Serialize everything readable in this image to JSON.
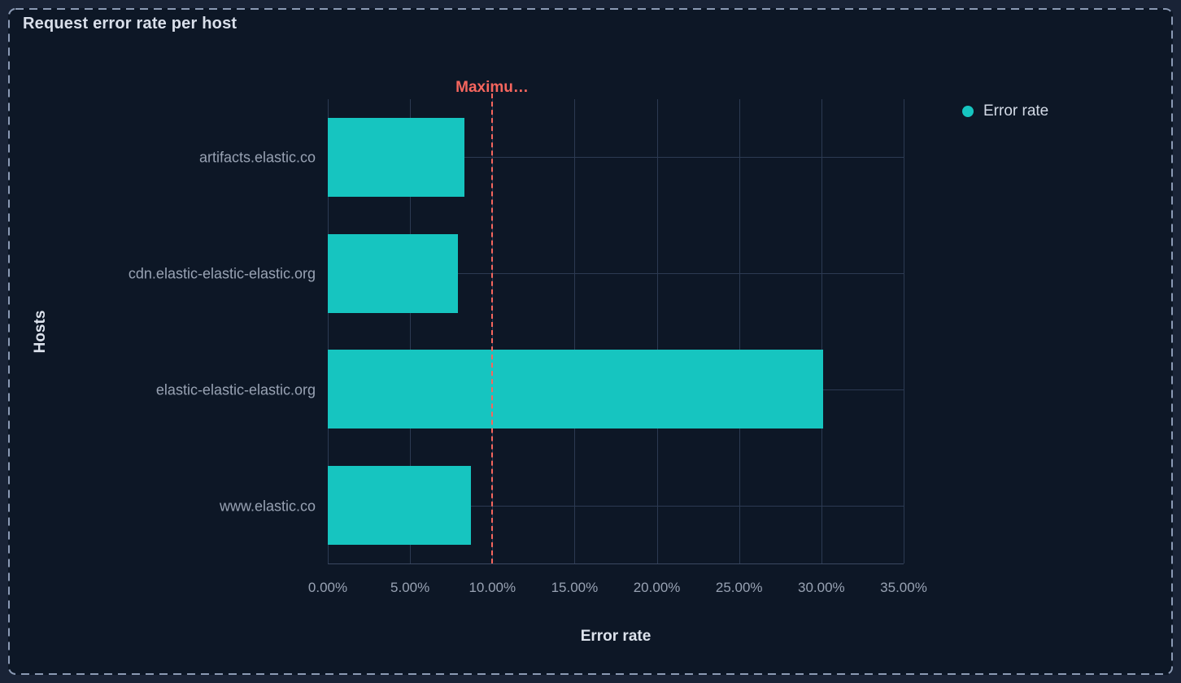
{
  "panel": {
    "title": "Request error rate per host"
  },
  "legend": {
    "position": "top-right",
    "items": [
      {
        "label": "Error rate",
        "color": "#16C5C0"
      }
    ]
  },
  "chart_data": {
    "type": "bar",
    "orientation": "horizontal",
    "title": "Request error rate per host",
    "xlabel": "Error rate",
    "ylabel": "Hosts",
    "categories": [
      "artifacts.elastic.co",
      "cdn.elastic-elastic-elastic.org",
      "elastic-elastic-elastic.org",
      "www.elastic.co"
    ],
    "series": [
      {
        "name": "Error rate",
        "values": [
          8.3,
          7.9,
          30.1,
          8.7
        ],
        "unit": "%",
        "color": "#16C5C0"
      }
    ],
    "xlim": [
      0,
      35
    ],
    "x_tick_labels": [
      "0.00%",
      "5.00%",
      "10.00%",
      "15.00%",
      "20.00%",
      "25.00%",
      "30.00%",
      "35.00%"
    ],
    "grid": true,
    "legend_position": "top-right",
    "annotation": {
      "label": "Maximu…",
      "value": 10,
      "unit": "%",
      "line_style": "dashed",
      "color": "#F6665E"
    }
  },
  "colors": {
    "bar": "#16C5C0",
    "annotation": "#F6665E",
    "panel_background": "#0D1726",
    "page_background": "#192336",
    "selection_border": "#8B9AB4",
    "gridline": "#2C3A52",
    "axis_line": "#3A4760",
    "text_primary": "#D9DFEA",
    "text_subdued": "#98A2B3"
  }
}
